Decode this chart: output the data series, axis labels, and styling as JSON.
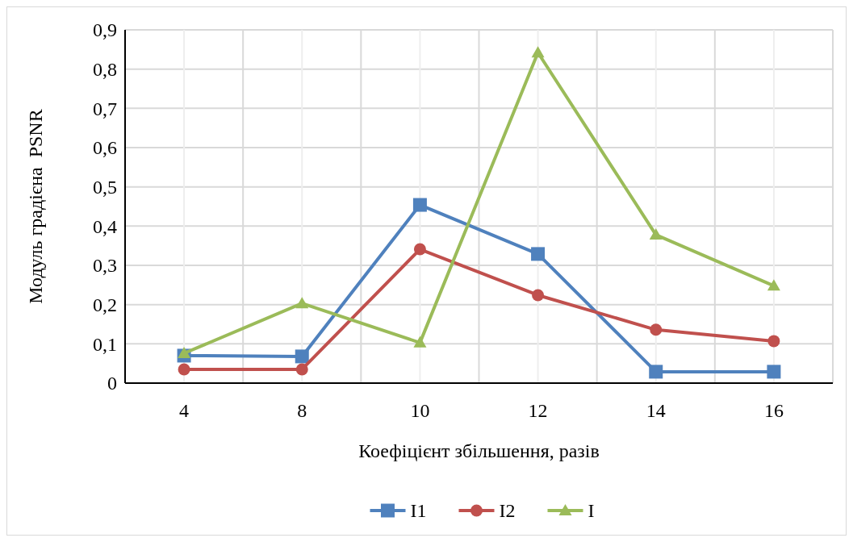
{
  "chart_data": {
    "type": "line",
    "xlabel": "Коефіцієнт збільшення, разів",
    "ylabel": "Модуль градієна  PSNR",
    "categories": [
      "4",
      "8",
      "10",
      "12",
      "14",
      "16"
    ],
    "series": [
      {
        "name": "I1",
        "color": "#4f81bd",
        "marker": "square",
        "values": [
          0.07,
          0.068,
          0.454,
          0.329,
          0.029,
          0.029
        ]
      },
      {
        "name": "I2",
        "color": "#c0504d",
        "marker": "circle",
        "values": [
          0.035,
          0.035,
          0.341,
          0.224,
          0.136,
          0.107
        ]
      },
      {
        "name": "I",
        "color": "#9bbb59",
        "marker": "triangle",
        "values": [
          0.076,
          0.203,
          0.103,
          0.842,
          0.378,
          0.248
        ]
      }
    ],
    "ylim": [
      0,
      0.9
    ],
    "yticks": [
      {
        "value": 0,
        "label": "0"
      },
      {
        "value": 0.1,
        "label": "0,1"
      },
      {
        "value": 0.2,
        "label": "0,2"
      },
      {
        "value": 0.3,
        "label": "0,3"
      },
      {
        "value": 0.4,
        "label": "0,4"
      },
      {
        "value": 0.5,
        "label": "0,5"
      },
      {
        "value": 0.6,
        "label": "0,6"
      },
      {
        "value": 0.7,
        "label": "0,7"
      },
      {
        "value": 0.8,
        "label": "0,8"
      },
      {
        "value": 0.9,
        "label": "0,9"
      }
    ],
    "grid": true,
    "legend": "bottom"
  }
}
